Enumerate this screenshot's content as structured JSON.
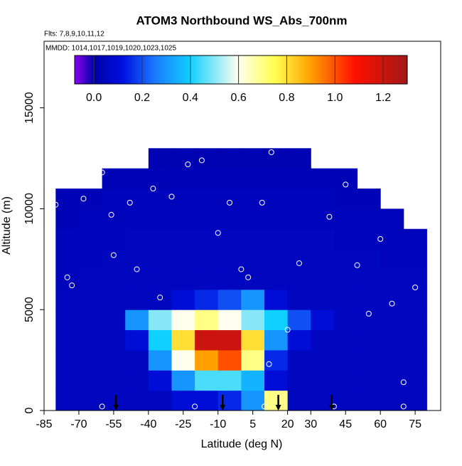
{
  "chart_data": {
    "type": "heatmap",
    "title": "ATOM3 Northbound WS_Abs_700nm",
    "subtitle": "Flts: 7,8,9,10,11,12",
    "annotation": "MMDD: 1014,1017,1019,1020,1023,1025",
    "x_label": "Latitude (deg N)",
    "y_label": "Altitude (m)",
    "xlim": [
      -85,
      86
    ],
    "ylim": [
      0,
      18300
    ],
    "xticks": [
      -85,
      -70,
      -55,
      -40,
      -25,
      -10,
      5,
      20,
      30,
      45,
      60,
      75
    ],
    "yticks": [
      0,
      5000,
      10000,
      15000
    ],
    "x_edges": [
      -80,
      -70,
      -60,
      -50,
      -40,
      -30,
      -20,
      -10,
      0,
      10,
      20,
      30,
      40,
      50,
      60,
      70,
      80
    ],
    "y_edges": [
      0,
      1000,
      2000,
      3000,
      4000,
      5000,
      6000,
      7000,
      8000,
      9000,
      10000,
      11000,
      12000,
      13000
    ],
    "z": [
      [
        0.05,
        0.05,
        0.05,
        0.05,
        0.05,
        0.1,
        0.1,
        0.15,
        0.3,
        0.7,
        0.05,
        0.05,
        0.05,
        0.05,
        0.05,
        0.05
      ],
      [
        0.05,
        0.05,
        0.05,
        0.05,
        0.1,
        0.3,
        0.45,
        0.45,
        0.35,
        0.1,
        0.05,
        0.05,
        0.05,
        0.05,
        0.05,
        0.05
      ],
      [
        0.05,
        0.05,
        0.05,
        0.05,
        0.3,
        0.6,
        0.9,
        1.0,
        0.7,
        0.15,
        0.05,
        0.05,
        0.05,
        0.05,
        0.05,
        0.05
      ],
      [
        0.05,
        0.05,
        0.05,
        0.1,
        0.4,
        0.8,
        1.2,
        1.2,
        0.8,
        0.3,
        0.1,
        0.05,
        0.05,
        0.05,
        0.05,
        0.05
      ],
      [
        0.05,
        0.05,
        0.05,
        0.3,
        0.5,
        0.6,
        0.7,
        0.6,
        0.5,
        0.4,
        0.2,
        0.1,
        0.05,
        0.05,
        0.05,
        0.05
      ],
      [
        0.05,
        0.05,
        0.05,
        0.05,
        0.05,
        0.1,
        0.15,
        0.2,
        0.3,
        0.1,
        0.05,
        0.05,
        0.05,
        0.05,
        0.05,
        0.05
      ],
      [
        0.04,
        0.05,
        0.05,
        0.05,
        0.05,
        0.05,
        0.05,
        0.05,
        0.05,
        0.05,
        0.05,
        0.05,
        0.05,
        0.05,
        0.05,
        0.05
      ],
      [
        0.04,
        0.04,
        0.05,
        0.05,
        0.05,
        0.05,
        0.05,
        0.05,
        0.05,
        0.05,
        0.05,
        0.05,
        0.05,
        0.05,
        0.04,
        0.04
      ],
      [
        0.04,
        0.04,
        0.04,
        0.05,
        0.05,
        0.05,
        0.05,
        0.05,
        0.05,
        0.05,
        0.05,
        0.05,
        0.04,
        0.04,
        0.04,
        0.04
      ],
      [
        0.03,
        0.04,
        0.04,
        0.04,
        0.04,
        0.04,
        0.04,
        0.04,
        0.04,
        0.04,
        0.04,
        0.04,
        0.04,
        0.04,
        0.04,
        null
      ],
      [
        0.03,
        0.03,
        0.04,
        0.04,
        0.04,
        0.04,
        0.04,
        0.04,
        0.04,
        0.04,
        0.04,
        0.04,
        0.03,
        0.03,
        null,
        null
      ],
      [
        null,
        null,
        0.03,
        0.03,
        0.03,
        0.03,
        0.03,
        0.03,
        0.03,
        0.03,
        0.03,
        0.03,
        0.03,
        null,
        null,
        null
      ],
      [
        null,
        null,
        null,
        null,
        0.02,
        0.02,
        0.02,
        0.02,
        0.02,
        0.02,
        0.02,
        null,
        null,
        null,
        null,
        null
      ]
    ],
    "clim": [
      -0.08,
      1.3
    ],
    "colorbar_ticks": [
      {
        "value": 0,
        "label": "0.0"
      },
      {
        "value": 0.2,
        "label": "0.2"
      },
      {
        "value": 0.4,
        "label": "0.4"
      },
      {
        "value": 0.6,
        "label": "0.6"
      },
      {
        "value": 0.8,
        "label": "0.8"
      },
      {
        "value": 1.0,
        "label": "1.0"
      },
      {
        "value": 1.2,
        "label": "1.2"
      }
    ],
    "colormap": [
      [
        -0.08,
        "#8a00f0"
      ],
      [
        0.0,
        "#0000a8"
      ],
      [
        0.12,
        "#0010e0"
      ],
      [
        0.25,
        "#1a78ff"
      ],
      [
        0.4,
        "#10d0ff"
      ],
      [
        0.6,
        "#fffff0"
      ],
      [
        0.75,
        "#ffff50"
      ],
      [
        0.9,
        "#ffa000"
      ],
      [
        1.08,
        "#ff1000"
      ],
      [
        1.3,
        "#a01818"
      ]
    ],
    "points": {
      "x": [
        -80,
        -83,
        -75,
        -73,
        -68,
        -60,
        -56,
        -55,
        -48,
        -45,
        -38,
        -35,
        -30,
        -23,
        -17,
        -12,
        -10,
        -5,
        0,
        3,
        9,
        13,
        20,
        25,
        35,
        38,
        45,
        50,
        55,
        60,
        65,
        70,
        75,
        -60,
        -20,
        10,
        40,
        70,
        12
      ],
      "y": [
        10200,
        7800,
        6600,
        6200,
        10500,
        11800,
        9700,
        7700,
        10300,
        7000,
        11000,
        5600,
        10600,
        12200,
        12400,
        13200,
        8800,
        10300,
        7000,
        6600,
        10300,
        12800,
        4000,
        7300,
        12200,
        9600,
        11200,
        7200,
        4800,
        8500,
        5300,
        1400,
        6100,
        200,
        200,
        200,
        200,
        200,
        2300
      ]
    },
    "arrows": [
      -54,
      -8,
      16,
      39
    ]
  }
}
